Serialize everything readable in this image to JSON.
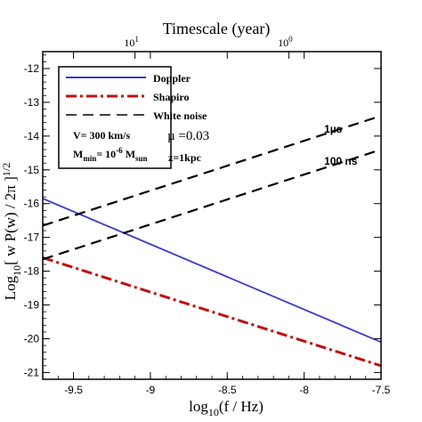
{
  "chart_data": {
    "type": "line",
    "top_axis": {
      "label": "Timescale (year)",
      "ticks": [
        {
          "label": "10",
          "sup": "1",
          "x": -9.1
        },
        {
          "label": "10",
          "sup": "0",
          "x": -8.1
        }
      ]
    },
    "xlabel": {
      "main": "log",
      "sub": "10",
      "rest": "(f / Hz)"
    },
    "ylabel": {
      "main": "Log",
      "sub": "10",
      "rest": "[ w P(w) / 2π ]",
      "tail": "1/2"
    },
    "xlim": [
      -9.7,
      -7.5
    ],
    "ylim": [
      -21.2,
      -11.5
    ],
    "x_ticks": [
      -9.5,
      -9,
      -8.5,
      -8,
      -7.5
    ],
    "x_tick_labels": [
      "-9.5",
      "-9",
      "-8.5",
      "-8",
      "-7.5"
    ],
    "y_ticks": [
      -21,
      -20,
      -19,
      -18,
      -17,
      -16,
      -15,
      -14,
      -13,
      -12
    ],
    "y_tick_labels": [
      "-21",
      "-20",
      "-19",
      "-18",
      "-17",
      "-16",
      "-15",
      "-14",
      "-13",
      "-12"
    ],
    "grid": false,
    "series": [
      {
        "name": "Doppler",
        "style": "solid",
        "color": "#3a3ad0",
        "x": [
          -9.7,
          -7.5
        ],
        "y": [
          -15.85,
          -20.1
        ]
      },
      {
        "name": "Shapiro",
        "style": "dashdot",
        "color": "#c01010",
        "x": [
          -9.7,
          -7.5
        ],
        "y": [
          -17.6,
          -20.8
        ]
      },
      {
        "name": "1µs",
        "style": "dashed",
        "color": "#000000",
        "x": [
          -9.7,
          -7.5
        ],
        "y": [
          -16.65,
          -13.4
        ]
      },
      {
        "name": "100 ns",
        "style": "dashed",
        "color": "#000000",
        "x": [
          -9.7,
          -7.5
        ],
        "y": [
          -17.65,
          -14.4
        ]
      }
    ],
    "annotations": [
      {
        "text": "1µs",
        "x": -7.87,
        "y": -13.9
      },
      {
        "text": "100 ns",
        "x": -7.87,
        "y": -14.85
      }
    ],
    "legend": {
      "placement": "top-left",
      "entries": [
        {
          "label": "Doppler",
          "style": "solid",
          "color": "#3a3ad0"
        },
        {
          "label": "Shapiro",
          "style": "dashdot",
          "color": "#c01010"
        },
        {
          "label": "White noise",
          "style": "dashed",
          "color": "#000000"
        }
      ],
      "params": {
        "velocity": "V= 300 km/s",
        "mu": "µ =0.03",
        "mass_prefix": "M",
        "mass_sub": "min",
        "mass_mid": "= 10",
        "mass_sup": "-6",
        "mass_mid2": " M",
        "mass_sub2": "sun",
        "distance": "z=1kpc"
      }
    }
  }
}
